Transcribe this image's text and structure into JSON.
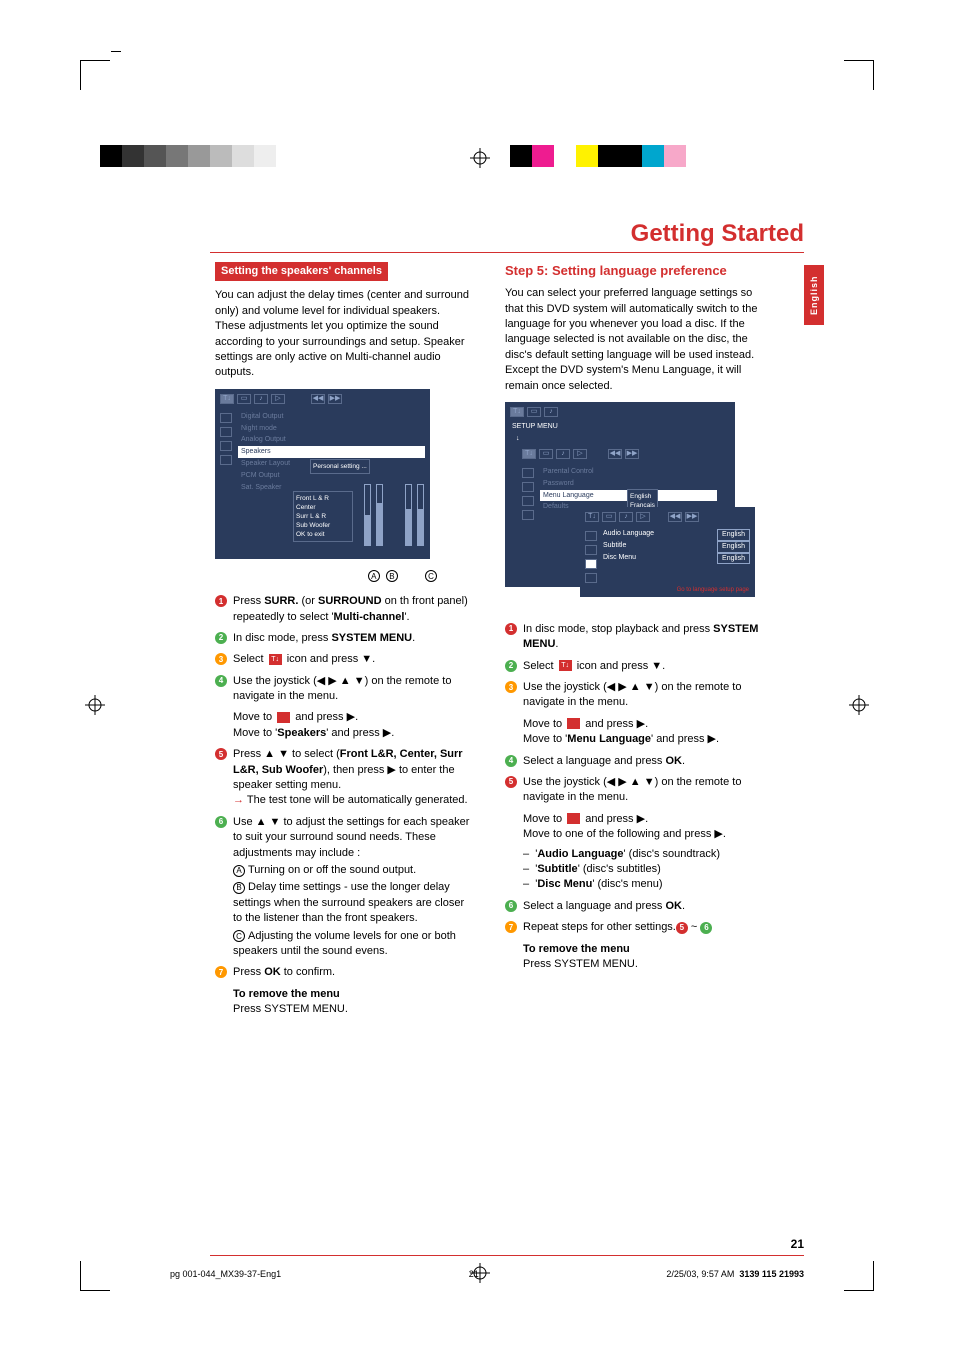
{
  "title": "Getting Started",
  "sideTab": "English",
  "colorBars": {
    "left": [
      "#000000",
      "#333333",
      "#555555",
      "#777777",
      "#999999",
      "#bbbbbb",
      "#dddddd",
      "#eeeeee",
      "#ffffff",
      "#ffffff",
      "#ffffff",
      "#ffffff"
    ],
    "right": [
      "#000000",
      "#ee1c90",
      "#ffffff",
      "#fff200",
      "#000000",
      "#000000",
      "#00a6ce",
      "#f7a8c9",
      "#ffffff",
      "#ffffff"
    ]
  },
  "left": {
    "sectionBar": "Setting the speakers' channels",
    "intro": "You can adjust the delay times (center and surround only) and volume level for individual speakers. These adjustments let you optimize the sound according to your surroundings and setup. Speaker settings are only active on Multi-channel audio outputs.",
    "menu": {
      "items": [
        "Digital Output",
        "Night mode",
        "Analog Output",
        "Speakers",
        "Speaker Layout",
        "PCM Output",
        "Sat. Speaker"
      ],
      "selected": "Speakers",
      "personal": "Personal setting ...",
      "sub": [
        "Front L & R",
        "Center",
        "Surr L & R",
        "Sub Woofer",
        "OK to exit"
      ],
      "labels": [
        "A",
        "B",
        "C"
      ]
    },
    "steps": [
      {
        "n": "1",
        "c": "nc-red",
        "prefix": "Press ",
        "bold": "SURR.",
        "rest": " (or ",
        "bold2": "SURROUND",
        "rest2": " on th   front panel) repeatedly to select '",
        "bold3": "Multi-channel",
        "rest3": "'."
      },
      {
        "n": "2",
        "c": "nc-green",
        "prefix": "In disc mode, press ",
        "bold": "SYSTEM MENU",
        "rest": "."
      },
      {
        "n": "3",
        "c": "nc-orange",
        "prefix": "Select ",
        "icon": true,
        "rest": " icon and press ▼."
      },
      {
        "n": "4",
        "c": "nc-green",
        "text": "Use the joystick (◀ ▶ ▲ ▼) on the remote to navigate in the menu."
      },
      {
        "indent": true,
        "line1a": "Move to ",
        "line1b": " and press ▶.",
        "line2": "Move to '",
        "bold": "Speakers",
        "line2b": "' and press ▶."
      },
      {
        "n": "5",
        "c": "nc-red",
        "prefix": "Press ▲ ▼ to select (",
        "bold": "Front L&R, Center, Surr L&R, Sub Woofer",
        "rest": "), then press ▶ to enter the speaker setting menu.",
        "arrow": "→ The test tone will be automatically generated."
      },
      {
        "n": "6",
        "c": "nc-green",
        "text": "Use ▲ ▼ to adjust the settings for each speaker to suit your surround sound needs. These adjustments may include :",
        "subs": [
          {
            "l": "A",
            "t": "Turning on or off the sound output."
          },
          {
            "l": "B",
            "t": "Delay time settings - use the longer delay settings when the surround speakers are closer to the listener than the front speakers."
          },
          {
            "l": "C",
            "t": "Adjusting the volume levels for one or both speakers until the sound evens."
          }
        ]
      },
      {
        "n": "7",
        "c": "nc-orange",
        "prefix": "Press ",
        "bold": "OK",
        "rest": " to confirm."
      }
    ],
    "remove": {
      "title": "To remove the menu",
      "body": "Press SYSTEM MENU."
    }
  },
  "right": {
    "stepHeader": "Step 5:   Setting language preference",
    "intro": "You can select your preferred language settings so that this DVD system will automatically switch to the language for you whenever you load a disc. If the language selected is not available on the disc, the disc's default setting language will be used instead. Except the DVD system's Menu Language, it will remain once selected.",
    "menu1": {
      "label": "SETUP MENU",
      "items": [
        "Parental Control",
        "Password",
        "Menu Language",
        "Defaults"
      ],
      "selected": "Menu Language",
      "langs": [
        "English",
        "Français"
      ]
    },
    "menu2": {
      "items": [
        "Audio Language",
        "Subtitle",
        "Disc Menu"
      ],
      "val": "English",
      "foot": "Go to language setup page"
    },
    "steps": [
      {
        "n": "1",
        "c": "nc-red",
        "prefix": "In disc mode, stop playback and press ",
        "bold": "SYSTEM MENU",
        "rest": "."
      },
      {
        "n": "2",
        "c": "nc-green",
        "prefix": "Select ",
        "icon": true,
        "rest": " icon and press ▼."
      },
      {
        "n": "3",
        "c": "nc-orange",
        "text": "Use the joystick (◀ ▶ ▲ ▼) on the remote to navigate in the menu."
      },
      {
        "indent": true,
        "line1a": "Move to ",
        "line1b": " and press ▶.",
        "line2": "Move to '",
        "bold": "Menu Language",
        "line2b": "' and press ▶."
      },
      {
        "n": "4",
        "c": "nc-green",
        "prefix": "Select a language and press ",
        "bold": "OK",
        "rest": "."
      },
      {
        "n": "5",
        "c": "nc-red",
        "text": "Use the joystick (◀ ▶ ▲ ▼) on the remote to navigate in the menu."
      },
      {
        "indent": true,
        "line1a": "Move to ",
        "line1b": " and press ▶.",
        "line2": "Move to one of the following and press ▶.",
        "list": [
          {
            "q": "Audio Language",
            "t": " (disc's soundtrack)"
          },
          {
            "q": "Subtitle",
            "t": " (disc's subtitles)"
          },
          {
            "q": "Disc Menu",
            "t": " (disc's menu)"
          }
        ]
      },
      {
        "n": "6",
        "c": "nc-green",
        "prefix": "Select a language and press ",
        "bold": "OK",
        "rest": "."
      },
      {
        "n": "7",
        "c": "nc-orange",
        "prefix": "Repeat steps ",
        "circ1": "5",
        "mid": "~",
        "circ2": "6",
        "rest": " for other settings."
      }
    ],
    "remove": {
      "title": "To remove the menu",
      "body": "Press SYSTEM MENU."
    }
  },
  "pageNum": "21",
  "footer": {
    "file": "pg 001-044_MX39-37-Eng1",
    "page": "21",
    "date": "2/25/03, 9:57 AM",
    "partnum": "3139 115 21993"
  }
}
